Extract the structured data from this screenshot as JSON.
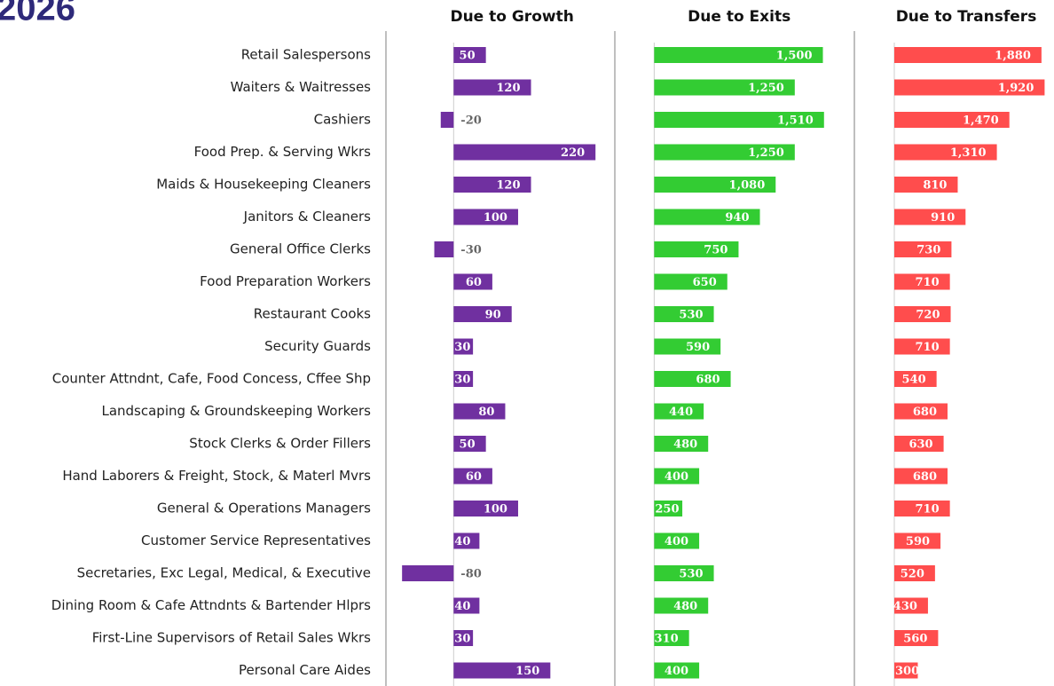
{
  "chart_data": {
    "type": "bar",
    "orientation": "horizontal",
    "title": "2026",
    "categories": [
      "Retail Salespersons",
      "Waiters & Waitresses",
      "Cashiers",
      "Food Prep. & Serving Wkrs",
      "Maids & Housekeeping Cleaners",
      "Janitors & Cleaners",
      "General Office Clerks",
      "Food Preparation Workers",
      "Restaurant Cooks",
      "Security Guards",
      "Counter Attndnt, Cafe, Food Concess, Cffee Shp",
      "Landscaping & Groundskeeping Workers",
      "Stock Clerks & Order Fillers",
      "Hand Laborers & Freight, Stock, & Materl Mvrs",
      "General & Operations Managers",
      "Customer Service Representatives",
      "Secretaries, Exc Legal, Medical, & Executive",
      "Dining Room & Cafe Attndnts & Bartender Hlprs",
      "First-Line Supervisors of Retail Sales Wkrs",
      "Personal Care Aides"
    ],
    "series": [
      {
        "name": "Due to Growth",
        "color": "#7030a0",
        "xlim": [
          -105,
          250
        ],
        "values": [
          50,
          120,
          -20,
          220,
          120,
          100,
          -30,
          60,
          90,
          30,
          30,
          80,
          50,
          60,
          100,
          40,
          -80,
          40,
          30,
          150
        ]
      },
      {
        "name": "Due to Exits",
        "color": "#33cc33",
        "xlim": [
          -350,
          1780
        ],
        "values": [
          1500,
          1250,
          1510,
          1250,
          1080,
          940,
          750,
          650,
          530,
          590,
          680,
          440,
          480,
          400,
          250,
          400,
          530,
          480,
          310,
          400
        ],
        "value_labels": [
          "1,500",
          "1,250",
          "1,510",
          "1,250",
          "1,080",
          "940",
          "750",
          "650",
          "530",
          "590",
          "680",
          "440",
          "480",
          "400",
          "250",
          "400",
          "530",
          "480",
          "310",
          "400"
        ]
      },
      {
        "name": "Due to Transfers",
        "color": "#ff4d4d",
        "xlim": [
          -510,
          2040
        ],
        "values": [
          1880,
          1920,
          1470,
          1310,
          810,
          910,
          730,
          710,
          720,
          710,
          540,
          680,
          630,
          680,
          710,
          590,
          520,
          430,
          560,
          300
        ],
        "value_labels": [
          "1,880",
          "1,920",
          "1,470",
          "1,310",
          "810",
          "910",
          "730",
          "710",
          "720",
          "710",
          "540",
          "680",
          "630",
          "680",
          "710",
          "590",
          "520",
          "430",
          "560",
          "300"
        ]
      }
    ]
  }
}
